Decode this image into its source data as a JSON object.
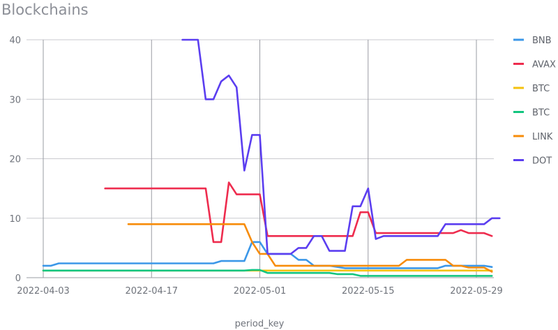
{
  "chart_data": {
    "type": "line",
    "title": "Blockchains",
    "xlabel": "period_key",
    "ylabel": "",
    "x_start": "2022-04-03",
    "x_end": "2022-05-31",
    "xticks": [
      "2022-04-03",
      "2022-04-17",
      "2022-05-01",
      "2022-05-15",
      "2022-05-29"
    ],
    "ylim": [
      0,
      40
    ],
    "yticks": [
      0,
      10,
      20,
      30,
      40
    ],
    "grid": true,
    "legend_position": "right",
    "series": [
      {
        "name": "BNB",
        "color": "#3b97e8",
        "points": [
          [
            "2022-04-03",
            2
          ],
          [
            "2022-04-04",
            2
          ],
          [
            "2022-04-05",
            2.4
          ],
          [
            "2022-04-25",
            2.4
          ],
          [
            "2022-04-26",
            2.8
          ],
          [
            "2022-04-29",
            2.8
          ],
          [
            "2022-04-30",
            6
          ],
          [
            "2022-05-01",
            6
          ],
          [
            "2022-05-02",
            4
          ],
          [
            "2022-05-05",
            4
          ],
          [
            "2022-05-06",
            3
          ],
          [
            "2022-05-07",
            3
          ],
          [
            "2022-05-08",
            2
          ],
          [
            "2022-05-10",
            2
          ],
          [
            "2022-05-12",
            1.6
          ],
          [
            "2022-05-24",
            1.6
          ],
          [
            "2022-05-25",
            2
          ],
          [
            "2022-05-30",
            2
          ],
          [
            "2022-05-31",
            1.8
          ]
        ]
      },
      {
        "name": "AVAX",
        "color": "#ee2c4e",
        "points": [
          [
            "2022-04-11",
            15
          ],
          [
            "2022-04-24",
            15
          ],
          [
            "2022-04-25",
            6
          ],
          [
            "2022-04-26",
            6
          ],
          [
            "2022-04-27",
            16
          ],
          [
            "2022-04-28",
            14
          ],
          [
            "2022-05-01",
            14
          ],
          [
            "2022-05-02",
            7
          ],
          [
            "2022-05-13",
            7
          ],
          [
            "2022-05-14",
            11
          ],
          [
            "2022-05-15",
            11
          ],
          [
            "2022-05-16",
            7.5
          ],
          [
            "2022-05-25",
            7.5
          ],
          [
            "2022-05-26",
            7.5
          ],
          [
            "2022-05-27",
            8
          ],
          [
            "2022-05-28",
            7.5
          ],
          [
            "2022-05-30",
            7.5
          ],
          [
            "2022-05-31",
            7
          ]
        ]
      },
      {
        "name": "BTC",
        "color": "#f4c20d",
        "points": [
          [
            "2022-04-03",
            1.2
          ],
          [
            "2022-05-31",
            1.2
          ]
        ]
      },
      {
        "name": "BTC",
        "color": "#13c57f",
        "points": [
          [
            "2022-04-03",
            1.2
          ],
          [
            "2022-04-29",
            1.2
          ],
          [
            "2022-04-30",
            1.3
          ],
          [
            "2022-05-01",
            1.3
          ],
          [
            "2022-05-02",
            0.8
          ],
          [
            "2022-05-10",
            0.8
          ],
          [
            "2022-05-11",
            0.6
          ],
          [
            "2022-05-13",
            0.6
          ],
          [
            "2022-05-14",
            0.3
          ],
          [
            "2022-05-31",
            0.3
          ]
        ]
      },
      {
        "name": "LINK",
        "color": "#f78c0a",
        "points": [
          [
            "2022-04-14",
            9
          ],
          [
            "2022-04-29",
            9
          ],
          [
            "2022-04-30",
            6
          ],
          [
            "2022-05-01",
            4
          ],
          [
            "2022-05-02",
            4
          ],
          [
            "2022-05-03",
            2
          ],
          [
            "2022-05-19",
            2
          ],
          [
            "2022-05-20",
            3
          ],
          [
            "2022-05-25",
            3
          ],
          [
            "2022-05-26",
            2
          ],
          [
            "2022-05-27",
            2
          ],
          [
            "2022-05-28",
            1.7
          ],
          [
            "2022-05-30",
            1.7
          ],
          [
            "2022-05-31",
            1
          ]
        ]
      },
      {
        "name": "DOT",
        "color": "#5b3ef0",
        "points": [
          [
            "2022-04-21",
            40
          ],
          [
            "2022-04-23",
            40
          ],
          [
            "2022-04-24",
            30
          ],
          [
            "2022-04-25",
            30
          ],
          [
            "2022-04-26",
            33
          ],
          [
            "2022-04-27",
            34
          ],
          [
            "2022-04-28",
            32
          ],
          [
            "2022-04-29",
            18
          ],
          [
            "2022-04-30",
            24
          ],
          [
            "2022-05-01",
            24
          ],
          [
            "2022-05-02",
            4
          ],
          [
            "2022-05-04",
            4
          ],
          [
            "2022-05-05",
            4
          ],
          [
            "2022-05-06",
            5
          ],
          [
            "2022-05-07",
            5
          ],
          [
            "2022-05-08",
            7
          ],
          [
            "2022-05-09",
            7
          ],
          [
            "2022-05-10",
            4.5
          ],
          [
            "2022-05-12",
            4.5
          ],
          [
            "2022-05-13",
            12
          ],
          [
            "2022-05-14",
            12
          ],
          [
            "2022-05-15",
            15
          ],
          [
            "2022-05-16",
            6.5
          ],
          [
            "2022-05-17",
            7
          ],
          [
            "2022-05-22",
            7
          ],
          [
            "2022-05-23",
            7
          ],
          [
            "2022-05-24",
            7
          ],
          [
            "2022-05-25",
            9
          ],
          [
            "2022-05-30",
            9
          ],
          [
            "2022-05-31",
            10
          ],
          [
            "2022-06-01",
            10
          ]
        ]
      }
    ]
  }
}
